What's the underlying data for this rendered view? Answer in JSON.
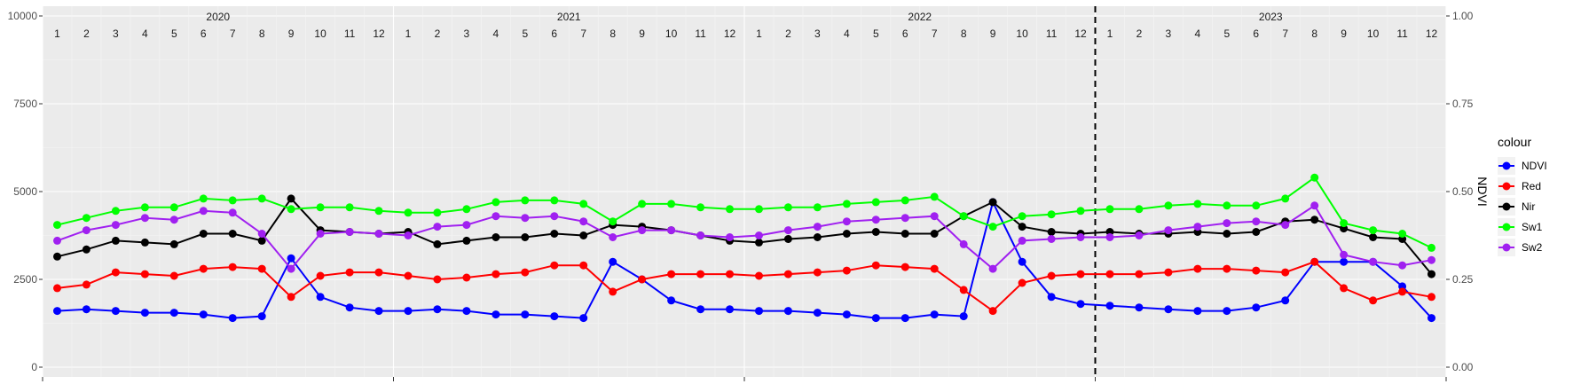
{
  "chart_data": {
    "type": "line",
    "x_unit": "month",
    "x_start": "2020-01",
    "x_end": "2023-12",
    "ylim_left": [
      0,
      10000
    ],
    "ylim_right": [
      0,
      1
    ],
    "left_ticks": [
      0,
      2500,
      5000,
      7500,
      10000
    ],
    "right_ticks": [
      "0.00",
      "0.25",
      "0.50",
      "0.75",
      "1.00"
    ],
    "ylabel_right": "NDVI",
    "years": [
      "2020",
      "2021",
      "2022",
      "2023"
    ],
    "month_labels": [
      "1",
      "2",
      "3",
      "4",
      "5",
      "6",
      "7",
      "8",
      "9",
      "10",
      "11",
      "12"
    ],
    "vline_month": 36,
    "grid": true,
    "legend": {
      "title": "colour",
      "position": "right",
      "entries": [
        "NDVI",
        "Red",
        "Nir",
        "Sw1",
        "Sw2"
      ]
    },
    "series": [
      {
        "name": "NDVI",
        "color": "#0000ff",
        "axis": "right",
        "values": [
          0.16,
          0.165,
          0.16,
          0.155,
          0.155,
          0.15,
          0.14,
          0.145,
          0.31,
          0.2,
          0.17,
          0.16,
          0.16,
          0.165,
          0.16,
          0.15,
          0.15,
          0.145,
          0.14,
          0.3,
          0.25,
          0.19,
          0.165,
          0.165,
          0.16,
          0.16,
          0.155,
          0.15,
          0.14,
          0.14,
          0.15,
          0.145,
          0.47,
          0.3,
          0.2,
          0.18,
          0.175,
          0.17,
          0.165,
          0.16,
          0.16,
          0.17,
          0.19,
          0.3,
          0.3,
          0.3,
          0.23,
          0.14
        ]
      },
      {
        "name": "Red",
        "color": "#ff0000",
        "axis": "left",
        "values": [
          2250,
          2350,
          2700,
          2650,
          2600,
          2800,
          2850,
          2800,
          2000,
          2600,
          2700,
          2700,
          2600,
          2500,
          2550,
          2650,
          2700,
          2900,
          2900,
          2150,
          2500,
          2650,
          2650,
          2650,
          2600,
          2650,
          2700,
          2750,
          2900,
          2850,
          2800,
          2200,
          1600,
          2400,
          2600,
          2650,
          2650,
          2650,
          2700,
          2800,
          2800,
          2750,
          2700,
          3000,
          2250,
          1900,
          2150,
          2000
        ]
      },
      {
        "name": "Nir",
        "color": "#000000",
        "axis": "left",
        "values": [
          3150,
          3350,
          3600,
          3550,
          3500,
          3800,
          3800,
          3600,
          4800,
          3900,
          3850,
          3800,
          3850,
          3500,
          3600,
          3700,
          3700,
          3800,
          3750,
          4050,
          4000,
          3900,
          3750,
          3600,
          3550,
          3650,
          3700,
          3800,
          3850,
          3800,
          3800,
          4300,
          4700,
          4000,
          3850,
          3800,
          3850,
          3800,
          3800,
          3850,
          3800,
          3850,
          4150,
          4200,
          3950,
          3700,
          3650,
          2650
        ]
      },
      {
        "name": "Sw1",
        "color": "#00ff00",
        "axis": "left",
        "values": [
          4050,
          4250,
          4450,
          4550,
          4550,
          4800,
          4750,
          4800,
          4500,
          4550,
          4550,
          4450,
          4400,
          4400,
          4500,
          4700,
          4750,
          4750,
          4650,
          4150,
          4650,
          4650,
          4550,
          4500,
          4500,
          4550,
          4550,
          4650,
          4700,
          4750,
          4850,
          4300,
          4000,
          4300,
          4350,
          4450,
          4500,
          4500,
          4600,
          4650,
          4600,
          4600,
          4800,
          5400,
          4100,
          3900,
          3800,
          3400
        ]
      },
      {
        "name": "Sw2",
        "color": "#a020f0",
        "axis": "left",
        "values": [
          3600,
          3900,
          4050,
          4250,
          4200,
          4450,
          4400,
          3800,
          2800,
          3800,
          3850,
          3800,
          3750,
          4000,
          4050,
          4300,
          4250,
          4300,
          4150,
          3700,
          3900,
          3900,
          3750,
          3700,
          3750,
          3900,
          4000,
          4150,
          4200,
          4250,
          4300,
          3500,
          2800,
          3600,
          3650,
          3700,
          3700,
          3750,
          3900,
          4000,
          4100,
          4150,
          4050,
          4600,
          3200,
          3000,
          2900,
          3050
        ]
      }
    ]
  }
}
